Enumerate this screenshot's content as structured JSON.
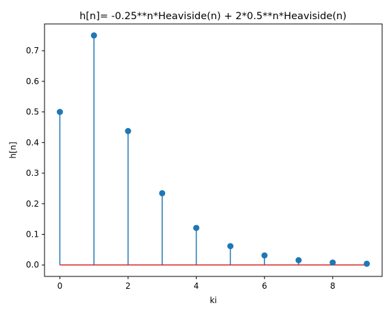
{
  "chart_data": {
    "type": "stem",
    "title": "h[n]= -0.25**n*Heaviside(n) + 2*0.5**n*Heaviside(n)",
    "xlabel": "ki",
    "ylabel": "h[n]",
    "x": [
      0,
      1,
      2,
      3,
      4,
      5,
      6,
      7,
      8,
      9
    ],
    "y": [
      0.5,
      0.75,
      0.4375,
      0.234375,
      0.12109375,
      0.0615234375,
      0.031005859375,
      0.015563964844,
      0.007797241211,
      0.003902435303
    ],
    "xlim": [
      -0.45,
      9.45
    ],
    "ylim": [
      -0.0375,
      0.7875
    ],
    "xticks": [
      0,
      2,
      4,
      6,
      8
    ],
    "xtick_labels": [
      "0",
      "2",
      "4",
      "6",
      "8"
    ],
    "yticks": [
      0.0,
      0.1,
      0.2,
      0.3,
      0.4,
      0.5,
      0.6,
      0.7
    ],
    "ytick_labels": [
      "0.0",
      "0.1",
      "0.2",
      "0.3",
      "0.4",
      "0.5",
      "0.6",
      "0.7"
    ],
    "grid": false,
    "colors": {
      "stem": "#1f77b4",
      "marker": "#1f77b4",
      "baseline": "#d62728"
    }
  }
}
